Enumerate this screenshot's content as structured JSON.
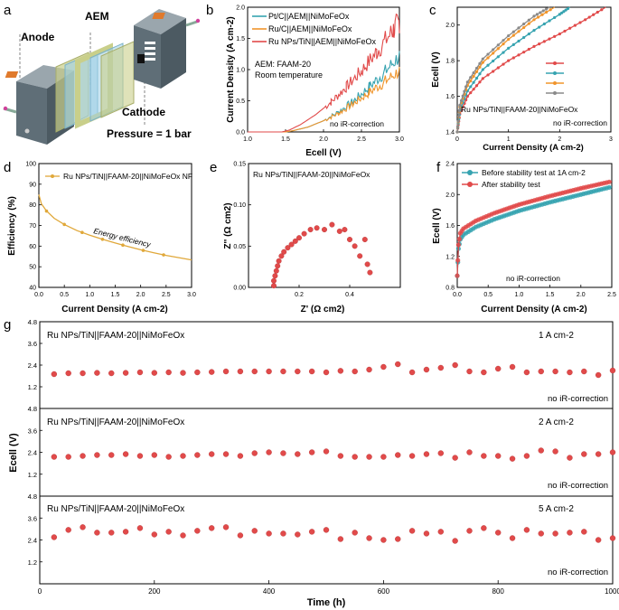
{
  "colors": {
    "red": "#e14a4a",
    "teal": "#36a3b0",
    "orange": "#f0952c",
    "gray": "#8a8a8a",
    "gold": "#e0a83a",
    "green": "#2fb26a",
    "blueFrame": "#9fd0e6",
    "olive": "#c9cf8a"
  },
  "panels": {
    "a": {
      "letter": "a",
      "labels": {
        "aem": "AEM",
        "anode": "Anode",
        "cathode": "Cathode",
        "pressure": "Pressure = 1 bar"
      }
    },
    "b": {
      "letter": "b",
      "note1": "AEM: FAAM-20",
      "note2": "Room temperature",
      "correction": "no iR-correction"
    },
    "c": {
      "letter": "c",
      "label": "Ru NPs/TiN||FAAM-20||NiMoFeOx",
      "correction": "no iR-correction"
    },
    "d": {
      "letter": "d",
      "annotation": "Energy efficiency"
    },
    "e": {
      "letter": "e",
      "label": "Ru NPs/TiN||FAAM-20||NiMoFeOx"
    },
    "f": {
      "letter": "f",
      "correction": "no iR-correction"
    },
    "g": {
      "letter": "g"
    }
  },
  "chart_data": [
    {
      "id": "b",
      "type": "line",
      "xlabel": "Ecell (V)",
      "ylabel": "Current Density (A cm-2)",
      "xlim": [
        1.0,
        3.0
      ],
      "ylim": [
        0,
        2.0
      ],
      "xticks": [
        1.0,
        1.5,
        2.0,
        2.5,
        3.0
      ],
      "yticks": [
        0.0,
        0.5,
        1.0,
        1.5,
        2.0
      ],
      "series": [
        {
          "name": "Pt/C||AEM||NiMoFeOx",
          "color": "teal",
          "x": [
            1.0,
            1.5,
            1.6,
            1.8,
            2.0,
            2.2,
            2.4,
            2.6,
            2.8,
            3.0
          ],
          "values": [
            0,
            0,
            0.02,
            0.08,
            0.18,
            0.32,
            0.5,
            0.72,
            0.95,
            1.22
          ]
        },
        {
          "name": "Ru/C||AEM||NiMoFeOx",
          "color": "orange",
          "x": [
            1.0,
            1.5,
            1.6,
            1.8,
            2.0,
            2.2,
            2.4,
            2.6,
            2.8,
            3.0
          ],
          "values": [
            0,
            0,
            0.02,
            0.08,
            0.18,
            0.3,
            0.46,
            0.63,
            0.8,
            0.98
          ]
        },
        {
          "name": "Ru NPs/TiN||AEM||NiMoFeOx",
          "color": "red",
          "x": [
            1.0,
            1.45,
            1.55,
            1.7,
            1.9,
            2.1,
            2.3,
            2.5,
            2.7,
            2.9,
            3.0
          ],
          "values": [
            0,
            0,
            0.03,
            0.12,
            0.28,
            0.48,
            0.72,
            0.98,
            1.28,
            1.6,
            1.78
          ]
        }
      ]
    },
    {
      "id": "c",
      "type": "line",
      "xlabel": "Current Density (A cm-2)",
      "ylabel": "Ecell (V)",
      "xlim": [
        0,
        3
      ],
      "ylim": [
        1.4,
        2.1
      ],
      "xticks": [
        0,
        1,
        2,
        3
      ],
      "yticks": [
        1.4,
        1.6,
        1.8,
        2.0
      ],
      "series": [
        {
          "name": "",
          "color": "red",
          "x": [
            0,
            0.05,
            0.2,
            0.5,
            1.0,
            1.5,
            2.0,
            2.5,
            2.9
          ],
          "values": [
            1.4,
            1.5,
            1.6,
            1.7,
            1.8,
            1.88,
            1.95,
            2.03,
            2.1
          ]
        },
        {
          "name": "",
          "color": "teal",
          "x": [
            0,
            0.05,
            0.2,
            0.5,
            1.0,
            1.5,
            2.0,
            2.2
          ],
          "values": [
            1.4,
            1.52,
            1.63,
            1.75,
            1.87,
            1.97,
            2.06,
            2.1
          ]
        },
        {
          "name": "",
          "color": "orange",
          "x": [
            0,
            0.05,
            0.2,
            0.5,
            1.0,
            1.5,
            1.9
          ],
          "values": [
            1.4,
            1.54,
            1.66,
            1.79,
            1.92,
            2.03,
            2.1
          ]
        },
        {
          "name": "",
          "color": "gray",
          "x": [
            0,
            0.05,
            0.2,
            0.5,
            1.0,
            1.5,
            1.8
          ],
          "values": [
            1.4,
            1.55,
            1.68,
            1.81,
            1.94,
            2.05,
            2.1
          ]
        }
      ]
    },
    {
      "id": "d",
      "type": "line",
      "xlabel": "Current Density (A cm-2)",
      "ylabel": "Efficiency (%)",
      "xlim": [
        0,
        3.0
      ],
      "ylim": [
        40,
        100
      ],
      "xticks": [
        0.0,
        0.5,
        1.0,
        1.5,
        2.0,
        2.5,
        3.0
      ],
      "yticks": [
        40,
        50,
        60,
        70,
        80,
        90,
        100
      ],
      "series": [
        {
          "name": "Ru NPs/TiN||FAAM-20||NiMoFeOx NF",
          "color": "gold",
          "x": [
            0,
            0.05,
            0.15,
            0.3,
            0.5,
            0.75,
            1.0,
            1.25,
            1.5,
            1.75,
            2.0,
            2.25,
            2.5,
            2.75,
            3.0
          ],
          "values": [
            85,
            80.5,
            77,
            73.5,
            70.5,
            67.5,
            65.3,
            63.3,
            61.5,
            59.8,
            58.2,
            56.8,
            55.5,
            54.4,
            53.3
          ]
        }
      ]
    },
    {
      "id": "e",
      "type": "scatter",
      "xlabel": "Z' (Ω cm2)",
      "ylabel": "Z'' (Ω cm2)",
      "xlim": [
        0,
        0.6
      ],
      "ylim": [
        0,
        0.15
      ],
      "xticks": [
        0.2,
        0.4
      ],
      "yticks": [
        0.0,
        0.05,
        0.1,
        0.15
      ],
      "x": [
        0.1,
        0.1,
        0.105,
        0.11,
        0.115,
        0.12,
        0.13,
        0.14,
        0.155,
        0.17,
        0.185,
        0.2,
        0.22,
        0.245,
        0.27,
        0.3,
        0.33,
        0.36,
        0.38,
        0.4,
        0.42,
        0.44,
        0.46,
        0.47,
        0.48
      ],
      "values": [
        0.002,
        0.008,
        0.014,
        0.02,
        0.026,
        0.032,
        0.038,
        0.043,
        0.048,
        0.052,
        0.056,
        0.06,
        0.065,
        0.07,
        0.072,
        0.07,
        0.076,
        0.068,
        0.07,
        0.058,
        0.05,
        0.038,
        0.058,
        0.028,
        0.018
      ]
    },
    {
      "id": "f",
      "type": "line",
      "xlabel": "Current Density (A cm-2)",
      "ylabel": "Ecell (V)",
      "xlim": [
        0,
        2.5
      ],
      "ylim": [
        0.8,
        2.4
      ],
      "xticks": [
        0.0,
        0.5,
        1.0,
        1.5,
        2.0,
        2.5
      ],
      "yticks": [
        0.8,
        1.2,
        1.6,
        2.0,
        2.4
      ],
      "series": [
        {
          "name": "Before stability test at 1A cm-2",
          "color": "teal",
          "x": [
            0,
            0.02,
            0.05,
            0.1,
            0.3,
            0.6,
            1.0,
            1.5,
            2.0,
            2.5
          ],
          "values": [
            0.95,
            1.3,
            1.42,
            1.48,
            1.58,
            1.68,
            1.79,
            1.9,
            2.0,
            2.1
          ]
        },
        {
          "name": "After stability test",
          "color": "red",
          "x": [
            0,
            0.02,
            0.05,
            0.1,
            0.3,
            0.6,
            1.0,
            1.5,
            2.0,
            2.5
          ],
          "values": [
            0.95,
            1.35,
            1.5,
            1.56,
            1.66,
            1.76,
            1.87,
            1.98,
            2.08,
            2.17
          ]
        }
      ]
    },
    {
      "id": "g",
      "type": "scatter",
      "xlabel": "Time (h)",
      "ylabel": "Ecell (V)",
      "xlim": [
        0,
        1000
      ],
      "xticks": [
        0,
        200,
        400,
        600,
        800,
        1000
      ],
      "subplots": [
        {
          "label": "Ru NPs/TiN||FAAM-20||NiMoFeOx",
          "current": "1 A cm-2",
          "correction": "no iR-correction",
          "ylim": [
            0,
            4.8
          ],
          "yticks": [
            1.2,
            2.4,
            3.6,
            4.8
          ],
          "x": [
            25,
            50,
            75,
            100,
            125,
            150,
            175,
            200,
            225,
            250,
            275,
            300,
            325,
            350,
            375,
            400,
            425,
            450,
            475,
            500,
            525,
            550,
            575,
            600,
            625,
            650,
            675,
            700,
            725,
            750,
            775,
            800,
            825,
            850,
            875,
            900,
            925,
            950,
            975,
            1000
          ],
          "values": [
            1.9,
            1.95,
            1.95,
            1.97,
            1.95,
            1.97,
            2.0,
            1.97,
            2.0,
            1.97,
            2.0,
            2.02,
            2.05,
            2.05,
            2.05,
            2.05,
            2.05,
            2.05,
            2.05,
            2.0,
            2.08,
            2.05,
            2.15,
            2.3,
            2.45,
            2.0,
            2.15,
            2.25,
            2.4,
            2.05,
            2.0,
            2.2,
            2.3,
            2.0,
            2.05,
            2.05,
            2.0,
            2.05,
            1.85,
            2.1
          ]
        },
        {
          "label": "Ru NPs/TiN||FAAM-20||NiMoFeOx",
          "current": "2 A cm-2",
          "correction": "no iR-correction",
          "ylim": [
            0,
            4.8
          ],
          "yticks": [
            1.2,
            2.4,
            3.6,
            4.8
          ],
          "x": [
            25,
            50,
            75,
            100,
            125,
            150,
            175,
            200,
            225,
            250,
            275,
            300,
            325,
            350,
            375,
            400,
            425,
            450,
            475,
            500,
            525,
            550,
            575,
            600,
            625,
            650,
            675,
            700,
            725,
            750,
            775,
            800,
            825,
            850,
            875,
            900,
            925,
            950,
            975,
            1000
          ],
          "values": [
            2.15,
            2.15,
            2.2,
            2.25,
            2.25,
            2.3,
            2.2,
            2.25,
            2.15,
            2.2,
            2.25,
            2.3,
            2.3,
            2.2,
            2.35,
            2.4,
            2.35,
            2.3,
            2.4,
            2.45,
            2.2,
            2.15,
            2.15,
            2.15,
            2.25,
            2.2,
            2.3,
            2.35,
            2.1,
            2.4,
            2.2,
            2.2,
            2.05,
            2.2,
            2.5,
            2.45,
            2.1,
            2.3,
            2.3,
            2.4
          ]
        },
        {
          "label": "Ru NPs/TiN||FAAM-20||NiMoFeOx",
          "current": "5 A cm-2",
          "correction": "no iR-correction",
          "ylim": [
            0,
            4.8
          ],
          "yticks": [
            1.2,
            2.4,
            3.6,
            4.8
          ],
          "x": [
            25,
            50,
            75,
            100,
            125,
            150,
            175,
            200,
            225,
            250,
            275,
            300,
            325,
            350,
            375,
            400,
            425,
            450,
            475,
            500,
            525,
            550,
            575,
            600,
            625,
            650,
            675,
            700,
            725,
            750,
            775,
            800,
            825,
            850,
            875,
            900,
            925,
            950,
            975,
            1000
          ],
          "values": [
            2.55,
            2.95,
            3.1,
            2.8,
            2.8,
            2.85,
            3.05,
            2.7,
            2.85,
            2.65,
            2.9,
            3.05,
            3.1,
            2.65,
            2.9,
            2.75,
            2.75,
            2.7,
            2.85,
            2.95,
            2.45,
            2.8,
            2.5,
            2.4,
            2.45,
            2.9,
            2.75,
            2.85,
            2.35,
            2.9,
            3.05,
            2.8,
            2.5,
            2.95,
            2.75,
            2.75,
            2.8,
            2.85,
            2.4,
            2.5
          ]
        }
      ]
    }
  ]
}
